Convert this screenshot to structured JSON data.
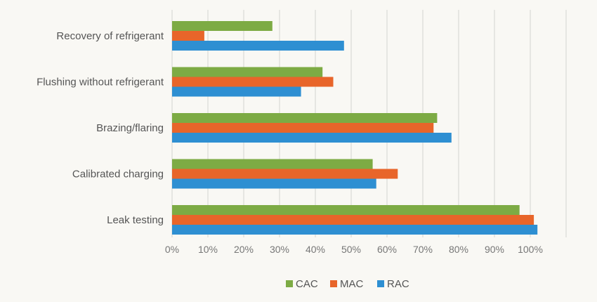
{
  "chart_data": {
    "type": "bar",
    "orientation": "horizontal",
    "categories": [
      "Recovery of refrigerant",
      "Flushing without refrigerant",
      "Brazing/flaring",
      "Calibrated charging",
      "Leak testing"
    ],
    "series": [
      {
        "name": "CAC",
        "color": "#7dab44",
        "values": [
          28,
          42,
          74,
          56,
          97
        ]
      },
      {
        "name": "MAC",
        "color": "#e8652a",
        "values": [
          9,
          45,
          73,
          63,
          101
        ]
      },
      {
        "name": "RAC",
        "color": "#2e8fd2",
        "values": [
          48,
          36,
          78,
          57,
          102
        ]
      }
    ],
    "x_ticks": [
      "0%",
      "10%",
      "20%",
      "30%",
      "40%",
      "50%",
      "60%",
      "70%",
      "80%",
      "90%",
      "100%"
    ],
    "xlim": [
      0,
      110
    ],
    "grid": true,
    "legend_position": "bottom"
  }
}
